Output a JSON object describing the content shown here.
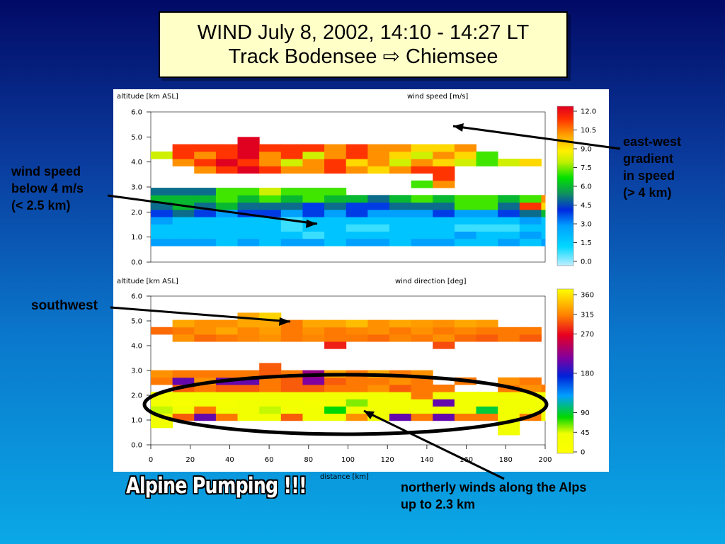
{
  "title": {
    "line1": "WIND July 8, 2002, 14:10 - 14:27 LT",
    "line2": "Track Bodensee ⇨ Chiemsee"
  },
  "annotations": {
    "low_speed": [
      "wind speed",
      "below 4 m/s",
      "(< 2.5 km)"
    ],
    "east_west": [
      "east-west",
      "gradient",
      "in speed",
      "(> 4 km)"
    ],
    "southwest": "southwest",
    "northerly": [
      "northerly winds along the Alps",
      "up to 2.3 km"
    ],
    "alpine": "Alpine Pumping !!!"
  },
  "chart_data": [
    {
      "type": "heatmap",
      "ylabel": "altitude [km ASL]",
      "colorbar_label": "wind speed [m/s]",
      "ylim": [
        0,
        6
      ],
      "xlim": [
        0,
        200
      ],
      "y_ticks": [
        "0.0",
        "1.0",
        "2.0",
        "3.0",
        "4.0",
        "5.0",
        "6.0"
      ],
      "colorbar_ticks": [
        "12.0",
        "10.5",
        "9.0",
        "7.5",
        "6.0",
        "4.5",
        "3.0",
        "1.5",
        "0.0"
      ],
      "colorbar_range": [
        0,
        12
      ],
      "cells": {
        "x_start": 0,
        "x_step": 11,
        "y_start": 0.65,
        "y_step": 0.29,
        "rows": [
          [
            3,
            3,
            3,
            2,
            3,
            2,
            3,
            3,
            2,
            3,
            3,
            2,
            3,
            3,
            2,
            2,
            3,
            2,
            3
          ],
          [
            2,
            2,
            2,
            2,
            2,
            2,
            2,
            1,
            2,
            2,
            2,
            2,
            2,
            2,
            3,
            2,
            2,
            3,
            2
          ],
          [
            2,
            2,
            2,
            2,
            2,
            2,
            1,
            2,
            2,
            1,
            1,
            2,
            2,
            2,
            1,
            1,
            1,
            2,
            2
          ],
          [
            3,
            2,
            2,
            2,
            2,
            2,
            1,
            2,
            2,
            2,
            2,
            2,
            2,
            2,
            2,
            2,
            2,
            3,
            2
          ],
          [
            4,
            5,
            4,
            3,
            4,
            4,
            3,
            4,
            3,
            4,
            3,
            3,
            3,
            4,
            3,
            3,
            4,
            5,
            6
          ],
          [
            5,
            6,
            5,
            6,
            5,
            5,
            5,
            4,
            5,
            4,
            4,
            5,
            5,
            5,
            7,
            7,
            5,
            11,
            9
          ],
          [
            6,
            6,
            6,
            7,
            6,
            7,
            6,
            7,
            6,
            6,
            5,
            6,
            7,
            6,
            7,
            7,
            6,
            7,
            10
          ],
          [
            5,
            5,
            5,
            7,
            7,
            8,
            7,
            7,
            7,
            null,
            null,
            null,
            null,
            null,
            null,
            null,
            null,
            null,
            null
          ],
          [
            null,
            null,
            null,
            null,
            null,
            null,
            null,
            null,
            null,
            null,
            null,
            null,
            7,
            10,
            null,
            null,
            null,
            null,
            null
          ],
          [
            null,
            null,
            null,
            null,
            null,
            null,
            null,
            null,
            null,
            null,
            null,
            null,
            null,
            11,
            null,
            null,
            null,
            null,
            null
          ],
          [
            null,
            null,
            10,
            11,
            12,
            11,
            10,
            10,
            11,
            10,
            9,
            10,
            11,
            11,
            null,
            null,
            null,
            null,
            null
          ],
          [
            null,
            10,
            11,
            12,
            11,
            10,
            8,
            10,
            11,
            9,
            10,
            8,
            10,
            9,
            8,
            7,
            8,
            9,
            null
          ],
          [
            8,
            11,
            10,
            11,
            12,
            10,
            11,
            8,
            10,
            11,
            10,
            9,
            8,
            10,
            9,
            7,
            null,
            null,
            null
          ],
          [
            null,
            11,
            11,
            11,
            12,
            11,
            11,
            11,
            10,
            11,
            10,
            10,
            9,
            9,
            10,
            null,
            null,
            null,
            null
          ],
          [
            null,
            null,
            null,
            null,
            12,
            null,
            null,
            null,
            null,
            null,
            null,
            null,
            null,
            null,
            null,
            null,
            null,
            null,
            null
          ]
        ]
      }
    },
    {
      "type": "heatmap",
      "ylabel": "altitude [km ASL]",
      "xlabel": "distance [km]",
      "colorbar_label": "wind direction [deg]",
      "ylim": [
        0,
        6
      ],
      "xlim": [
        0,
        200
      ],
      "x_ticks": [
        "0",
        "20",
        "40",
        "60",
        "80",
        "100",
        "120",
        "140",
        "160",
        "180",
        "200"
      ],
      "y_ticks": [
        "0.0",
        "1.0",
        "2.0",
        "3.0",
        "4.0",
        "5.0",
        "6.0"
      ],
      "colorbar_ticks": [
        "360",
        "315",
        "270",
        "180",
        "90",
        "45",
        "0"
      ],
      "colorbar_range": [
        0,
        360
      ],
      "cells": {
        "x_start": 0,
        "x_step": 11,
        "y_start": 0.4,
        "y_step": 0.29,
        "rows": [
          [
            null,
            null,
            null,
            null,
            null,
            null,
            null,
            null,
            null,
            null,
            null,
            null,
            null,
            null,
            null,
            null,
            40,
            null,
            null
          ],
          [
            40,
            null,
            null,
            null,
            null,
            null,
            null,
            null,
            null,
            null,
            null,
            null,
            null,
            null,
            null,
            null,
            40,
            null,
            null
          ],
          [
            40,
            290,
            200,
            300,
            40,
            40,
            290,
            40,
            40,
            310,
            40,
            200,
            300,
            200,
            300,
            300,
            40,
            300,
            40
          ],
          [
            50,
            40,
            300,
            40,
            40,
            50,
            30,
            40,
            80,
            40,
            40,
            40,
            40,
            40,
            40,
            90,
            40,
            40,
            40
          ],
          [
            40,
            20,
            40,
            30,
            40,
            40,
            40,
            30,
            40,
            60,
            40,
            40,
            40,
            200,
            40,
            30,
            40,
            40,
            30
          ],
          [
            40,
            40,
            40,
            40,
            40,
            40,
            40,
            40,
            40,
            40,
            40,
            40,
            300,
            40,
            40,
            40,
            40,
            40,
            40
          ],
          [
            null,
            290,
            300,
            290,
            290,
            300,
            290,
            290,
            300,
            300,
            310,
            290,
            300,
            300,
            null,
            null,
            300,
            310,
            300
          ],
          [
            300,
            200,
            310,
            200,
            200,
            300,
            290,
            210,
            290,
            300,
            300,
            310,
            300,
            null,
            300,
            null,
            310,
            300,
            null
          ],
          [
            310,
            300,
            300,
            300,
            300,
            290,
            300,
            220,
            320,
            300,
            320,
            300,
            310,
            null,
            null,
            null,
            null,
            null,
            null
          ],
          [
            null,
            null,
            null,
            null,
            null,
            290,
            null,
            null,
            null,
            null,
            null,
            null,
            null,
            null,
            null,
            null,
            null,
            null,
            null
          ],
          [
            null,
            null,
            null,
            null,
            null,
            null,
            null,
            null,
            null,
            null,
            null,
            null,
            null,
            null,
            null,
            null,
            null,
            null,
            null
          ],
          [
            null,
            null,
            null,
            null,
            null,
            null,
            null,
            null,
            null,
            null,
            null,
            null,
            null,
            null,
            null,
            null,
            null,
            null,
            null
          ],
          [
            null,
            null,
            null,
            null,
            null,
            null,
            null,
            null,
            270,
            null,
            null,
            null,
            null,
            285,
            null,
            null,
            null,
            null,
            null
          ],
          [
            null,
            310,
            295,
            300,
            305,
            310,
            300,
            305,
            300,
            300,
            295,
            305,
            300,
            310,
            295,
            290,
            300,
            290,
            null
          ],
          [
            295,
            300,
            310,
            320,
            305,
            315,
            300,
            310,
            300,
            305,
            310,
            300,
            310,
            300,
            305,
            300,
            300,
            300,
            null
          ],
          [
            null,
            320,
            310,
            310,
            320,
            320,
            300,
            320,
            320,
            330,
            310,
            320,
            315,
            310,
            320,
            315,
            null,
            null,
            null
          ],
          [
            null,
            null,
            null,
            null,
            320,
            340,
            null,
            null,
            null,
            null,
            null,
            null,
            null,
            null,
            null,
            null,
            null,
            null,
            null
          ]
        ]
      }
    }
  ]
}
